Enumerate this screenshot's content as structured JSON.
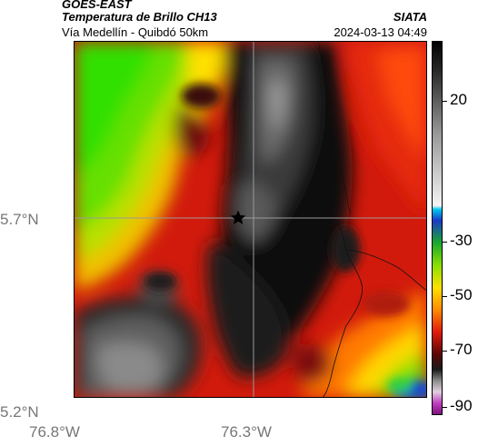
{
  "header": {
    "satellite": "GOES-EAST",
    "product": "Temperatura de Brillo CH13",
    "region": "Vía Medellín - Quibdó 50km",
    "organization": "SIATA",
    "timestamp": "2024-03-13 04:49"
  },
  "axes": {
    "lat_labels": [
      "5.7°N",
      "5.2°N"
    ],
    "lon_labels": [
      "76.8°W",
      "76.3°W"
    ]
  },
  "colorbar": {
    "ticks": [
      "20",
      "-30",
      "-50",
      "-70",
      "-90"
    ]
  },
  "map": {
    "marker_icon": "star-icon",
    "gridline_color": "#9a9a9a"
  }
}
